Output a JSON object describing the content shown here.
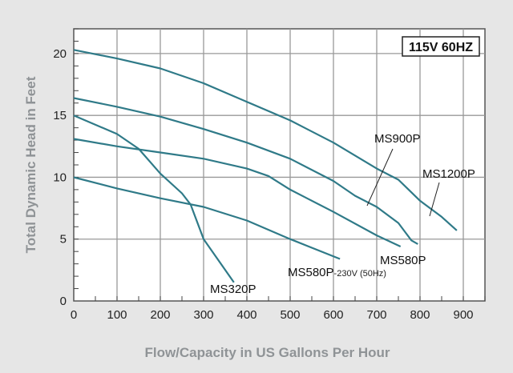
{
  "chart_data": {
    "type": "line",
    "title": "",
    "badge": "115V 60HZ",
    "xlabel": "Flow/Capacity in US Gallons Per Hour",
    "ylabel": "Total Dynamic Head in Feet",
    "xlim": [
      0,
      950
    ],
    "ylim": [
      0,
      22
    ],
    "xticks": [
      0,
      100,
      200,
      300,
      400,
      500,
      600,
      700,
      800,
      900
    ],
    "yticks": [
      0,
      5,
      10,
      15,
      20
    ],
    "grid": true,
    "line_color": "#2f7a88",
    "series": [
      {
        "name": "MS1200P",
        "points": [
          [
            0,
            20.3
          ],
          [
            100,
            19.6
          ],
          [
            200,
            18.8
          ],
          [
            300,
            17.6
          ],
          [
            400,
            16.1
          ],
          [
            500,
            14.6
          ],
          [
            600,
            12.8
          ],
          [
            700,
            10.7
          ],
          [
            750,
            9.8
          ],
          [
            800,
            8.1
          ],
          [
            850,
            6.8
          ],
          [
            885,
            5.7
          ]
        ]
      },
      {
        "name": "MS900P",
        "points": [
          [
            0,
            16.4
          ],
          [
            100,
            15.7
          ],
          [
            200,
            14.9
          ],
          [
            300,
            13.9
          ],
          [
            400,
            12.8
          ],
          [
            500,
            11.5
          ],
          [
            600,
            9.7
          ],
          [
            650,
            8.5
          ],
          [
            700,
            7.6
          ],
          [
            750,
            6.3
          ],
          [
            780,
            4.9
          ],
          [
            795,
            4.6
          ]
        ]
      },
      {
        "name": "MS580P",
        "points": [
          [
            0,
            13.1
          ],
          [
            100,
            12.5
          ],
          [
            200,
            12.0
          ],
          [
            300,
            11.5
          ],
          [
            400,
            10.7
          ],
          [
            450,
            10.1
          ],
          [
            500,
            9.0
          ],
          [
            600,
            7.2
          ],
          [
            700,
            5.3
          ],
          [
            755,
            4.4
          ]
        ]
      },
      {
        "name": "MS580P",
        "sublabel": "-230V (50Hz)",
        "points": [
          [
            0,
            10.0
          ],
          [
            100,
            9.1
          ],
          [
            200,
            8.3
          ],
          [
            300,
            7.6
          ],
          [
            400,
            6.5
          ],
          [
            500,
            5.0
          ],
          [
            615,
            3.4
          ]
        ]
      },
      {
        "name": "MS320P",
        "points": [
          [
            0,
            15.0
          ],
          [
            100,
            13.5
          ],
          [
            150,
            12.3
          ],
          [
            200,
            10.3
          ],
          [
            250,
            8.7
          ],
          [
            270,
            7.8
          ],
          [
            300,
            5.0
          ],
          [
            330,
            3.5
          ],
          [
            370,
            1.5
          ]
        ]
      }
    ]
  }
}
